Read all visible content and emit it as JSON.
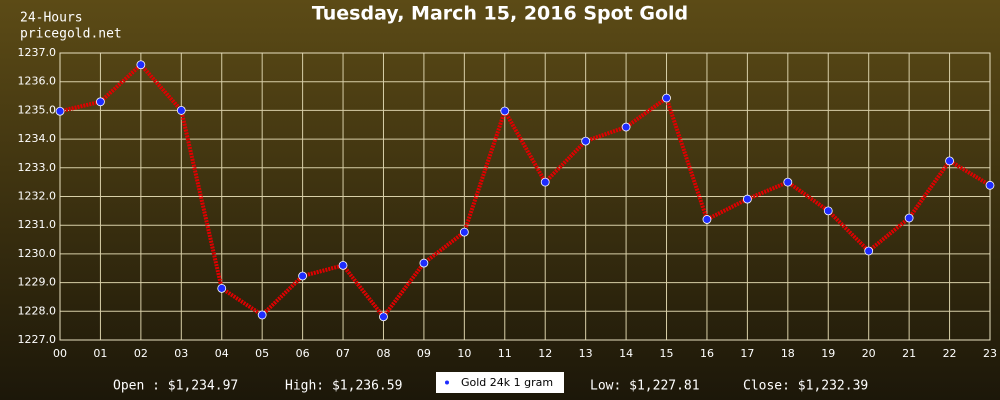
{
  "chart_data": {
    "type": "line",
    "title": "Tuesday, March 15, 2016 Spot Gold",
    "subtitle": [
      "24-Hours",
      "pricegold.net"
    ],
    "categories": [
      "00",
      "01",
      "02",
      "03",
      "04",
      "05",
      "06",
      "07",
      "08",
      "09",
      "10",
      "11",
      "12",
      "13",
      "14",
      "15",
      "16",
      "17",
      "18",
      "19",
      "20",
      "21",
      "22",
      "23"
    ],
    "series": [
      {
        "name": "Gold 24k 1 gram",
        "color": "#e00000",
        "marker_color": "#1e2cff",
        "values": [
          1234.97,
          1235.3,
          1236.59,
          1235.0,
          1228.8,
          1227.87,
          1229.23,
          1229.6,
          1227.81,
          1229.68,
          1230.76,
          1234.98,
          1232.5,
          1233.93,
          1234.42,
          1235.43,
          1231.2,
          1231.91,
          1232.5,
          1231.5,
          1230.1,
          1231.25,
          1233.24,
          1232.39
        ]
      }
    ],
    "ylim": [
      1227,
      1237
    ],
    "yticks": [
      {
        "value": 1227,
        "label": "1227.0"
      },
      {
        "value": 1228,
        "label": "1228.0"
      },
      {
        "value": 1229,
        "label": "1229.0"
      },
      {
        "value": 1230,
        "label": "1230.0"
      },
      {
        "value": 1231,
        "label": "1231.0"
      },
      {
        "value": 1232,
        "label": "1232.0"
      },
      {
        "value": 1233,
        "label": "1233.0"
      },
      {
        "value": 1234,
        "label": "1234.0"
      },
      {
        "value": 1235,
        "label": "1235.0"
      },
      {
        "value": 1236,
        "label": "1236.0"
      },
      {
        "value": 1237,
        "label": "1237.0"
      }
    ],
    "grid": true,
    "annotations": [
      "Open : $1,234.97",
      "High: $1,236.59",
      "Low: $1,227.81",
      "Close: $1,232.39"
    ]
  }
}
